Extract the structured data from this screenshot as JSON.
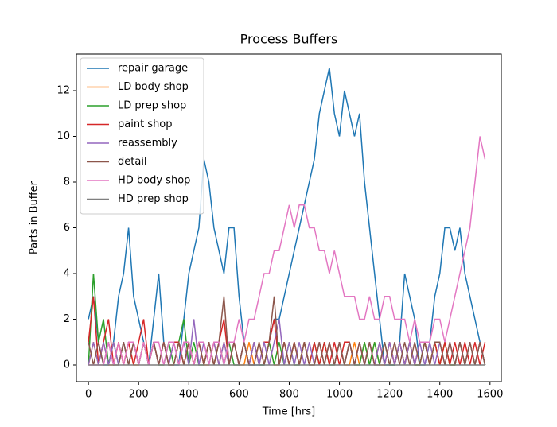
{
  "chart_data": {
    "type": "line",
    "title": "Process Buffers",
    "x_label": "Time [hrs]",
    "y_label": "Parts in Buffer",
    "x": [
      0,
      20,
      40,
      60,
      80,
      100,
      120,
      140,
      160,
      180,
      200,
      220,
      240,
      260,
      280,
      300,
      320,
      340,
      360,
      380,
      400,
      420,
      440,
      460,
      480,
      500,
      520,
      540,
      560,
      580,
      600,
      620,
      640,
      660,
      680,
      700,
      720,
      740,
      760,
      780,
      800,
      820,
      840,
      860,
      880,
      900,
      920,
      940,
      960,
      980,
      1000,
      1020,
      1040,
      1060,
      1080,
      1100,
      1120,
      1140,
      1160,
      1180,
      1200,
      1220,
      1240,
      1260,
      1280,
      1300,
      1320,
      1340,
      1360,
      1380,
      1400,
      1420,
      1440,
      1460,
      1480,
      1500,
      1520,
      1540,
      1560,
      1580
    ],
    "series": [
      {
        "name": "repair garage",
        "color": "#1f77b4",
        "values": [
          2,
          3,
          1,
          0,
          0,
          1,
          3,
          4,
          6,
          3,
          2,
          1,
          0,
          2,
          4,
          1,
          0,
          0,
          0,
          2,
          4,
          5,
          6,
          9,
          8,
          6,
          5,
          4,
          6,
          6,
          3,
          1,
          0,
          0,
          0,
          0,
          1,
          2,
          2,
          3,
          4,
          5,
          6,
          7,
          8,
          9,
          11,
          12,
          13,
          11,
          10,
          12,
          11,
          10,
          11,
          8,
          6,
          4,
          2,
          0,
          0,
          0,
          1,
          4,
          3,
          2,
          0,
          0,
          1,
          3,
          4,
          6,
          6,
          5,
          6,
          4,
          3,
          2,
          1,
          0
        ]
      },
      {
        "name": "LD body shop",
        "color": "#ff7f0e",
        "values": [
          0,
          1,
          0,
          1,
          0,
          0,
          1,
          0,
          1,
          0,
          0,
          1,
          0,
          1,
          0,
          1,
          0,
          0,
          1,
          0,
          1,
          0,
          1,
          0,
          0,
          1,
          0,
          1,
          0,
          1,
          0,
          0,
          1,
          0,
          1,
          0,
          1,
          0,
          0,
          1,
          0,
          1,
          0,
          1,
          0,
          0,
          1,
          0,
          1,
          0,
          1,
          0,
          0,
          1,
          0,
          1,
          0,
          1,
          0,
          0,
          1,
          0,
          1,
          0,
          1,
          0,
          0,
          1,
          0,
          1,
          0,
          1,
          0,
          0,
          1,
          0,
          1,
          0,
          1,
          0
        ]
      },
      {
        "name": "LD prep shop",
        "color": "#2ca02c",
        "values": [
          0,
          4,
          1,
          2,
          0,
          1,
          0,
          1,
          0,
          1,
          0,
          1,
          0,
          1,
          0,
          0,
          1,
          0,
          1,
          2,
          0,
          1,
          0,
          0,
          1,
          0,
          1,
          0,
          1,
          0,
          0,
          1,
          0,
          1,
          0,
          0,
          1,
          0,
          1,
          0,
          1,
          0,
          0,
          1,
          0,
          1,
          0,
          1,
          0,
          0,
          1,
          0,
          1,
          0,
          0,
          1,
          0,
          1,
          0,
          1,
          0,
          0,
          1,
          0,
          1,
          0,
          0,
          1,
          0,
          1,
          0,
          1,
          0,
          0,
          1,
          0,
          1,
          0,
          1,
          0
        ]
      },
      {
        "name": "paint shop",
        "color": "#d62728",
        "values": [
          1,
          3,
          0,
          1,
          2,
          0,
          1,
          0,
          1,
          0,
          1,
          2,
          0,
          1,
          0,
          1,
          0,
          1,
          1,
          0,
          1,
          0,
          1,
          0,
          1,
          0,
          1,
          2,
          0,
          1,
          0,
          1,
          0,
          1,
          0,
          1,
          1,
          2,
          0,
          1,
          0,
          1,
          0,
          1,
          0,
          1,
          0,
          1,
          0,
          1,
          0,
          1,
          1,
          0,
          1,
          0,
          1,
          0,
          1,
          0,
          1,
          0,
          1,
          0,
          1,
          0,
          1,
          1,
          0,
          1,
          0,
          1,
          0,
          1,
          0,
          1,
          0,
          1,
          0,
          1
        ]
      },
      {
        "name": "reassembly",
        "color": "#9467bd",
        "values": [
          0,
          1,
          0,
          1,
          0,
          1,
          0,
          1,
          0,
          1,
          0,
          1,
          0,
          1,
          0,
          1,
          0,
          1,
          0,
          1,
          0,
          2,
          0,
          1,
          0,
          1,
          0,
          1,
          0,
          1,
          0,
          1,
          0,
          1,
          0,
          1,
          0,
          1,
          2,
          0,
          1,
          0,
          1,
          0,
          1,
          0,
          1,
          0,
          1,
          0,
          1,
          0,
          1,
          0,
          1,
          0,
          1,
          0,
          1,
          0,
          1,
          0,
          1,
          0,
          1,
          0,
          1,
          0,
          1,
          0,
          1,
          0,
          1,
          0,
          1,
          0,
          1,
          0,
          1,
          0
        ]
      },
      {
        "name": "detail",
        "color": "#8c564b",
        "values": [
          1,
          0,
          1,
          0,
          1,
          0,
          0,
          1,
          0,
          1,
          0,
          1,
          0,
          1,
          0,
          1,
          0,
          0,
          1,
          0,
          1,
          0,
          1,
          0,
          1,
          0,
          1,
          3,
          0,
          1,
          0,
          1,
          0,
          0,
          1,
          0,
          1,
          3,
          0,
          1,
          0,
          1,
          0,
          1,
          0,
          0,
          1,
          0,
          1,
          0,
          1,
          0,
          1,
          0,
          1,
          0,
          1,
          0,
          0,
          1,
          0,
          1,
          0,
          1,
          0,
          1,
          0,
          1,
          0,
          1,
          1,
          0,
          1,
          0,
          1,
          0,
          1,
          0,
          1,
          0
        ]
      },
      {
        "name": "HD body shop",
        "color": "#e377c2",
        "values": [
          0,
          0,
          0,
          0,
          1,
          0,
          1,
          0,
          1,
          1,
          0,
          1,
          0,
          1,
          1,
          0,
          1,
          1,
          0,
          1,
          1,
          0,
          1,
          1,
          0,
          1,
          1,
          0,
          1,
          1,
          2,
          1,
          2,
          2,
          3,
          4,
          4,
          5,
          5,
          6,
          7,
          6,
          7,
          7,
          6,
          6,
          5,
          5,
          4,
          5,
          4,
          3,
          3,
          3,
          2,
          2,
          3,
          2,
          2,
          3,
          3,
          2,
          2,
          2,
          1,
          2,
          1,
          1,
          1,
          2,
          2,
          1,
          2,
          3,
          4,
          5,
          6,
          8,
          10,
          9
        ]
      },
      {
        "name": "HD prep shop",
        "color": "#7f7f7f",
        "values": [
          0,
          0,
          0,
          0,
          0,
          0,
          0,
          0,
          0,
          0,
          0,
          0,
          0,
          0,
          0,
          0,
          0,
          0,
          0,
          0,
          0,
          0,
          0,
          0,
          0,
          0,
          0,
          0,
          0,
          0,
          0,
          0,
          0,
          0,
          0,
          0,
          0,
          0,
          0,
          0,
          0,
          0,
          0,
          0,
          0,
          0,
          0,
          0,
          0,
          0,
          0,
          0,
          0,
          0,
          0,
          0,
          0,
          0,
          0,
          0,
          0,
          0,
          0,
          0,
          0,
          0,
          0,
          0,
          0,
          0,
          0,
          0,
          0,
          0,
          0,
          0,
          0,
          0,
          0,
          0
        ]
      }
    ],
    "xlim": [
      -48,
      1645
    ],
    "xticks": [
      0,
      200,
      400,
      600,
      800,
      1000,
      1200,
      1400,
      1600
    ],
    "ylim": [
      -0.73,
      13.6
    ],
    "yticks": [
      0,
      2,
      4,
      6,
      8,
      10,
      12
    ],
    "legend": "upper left"
  }
}
